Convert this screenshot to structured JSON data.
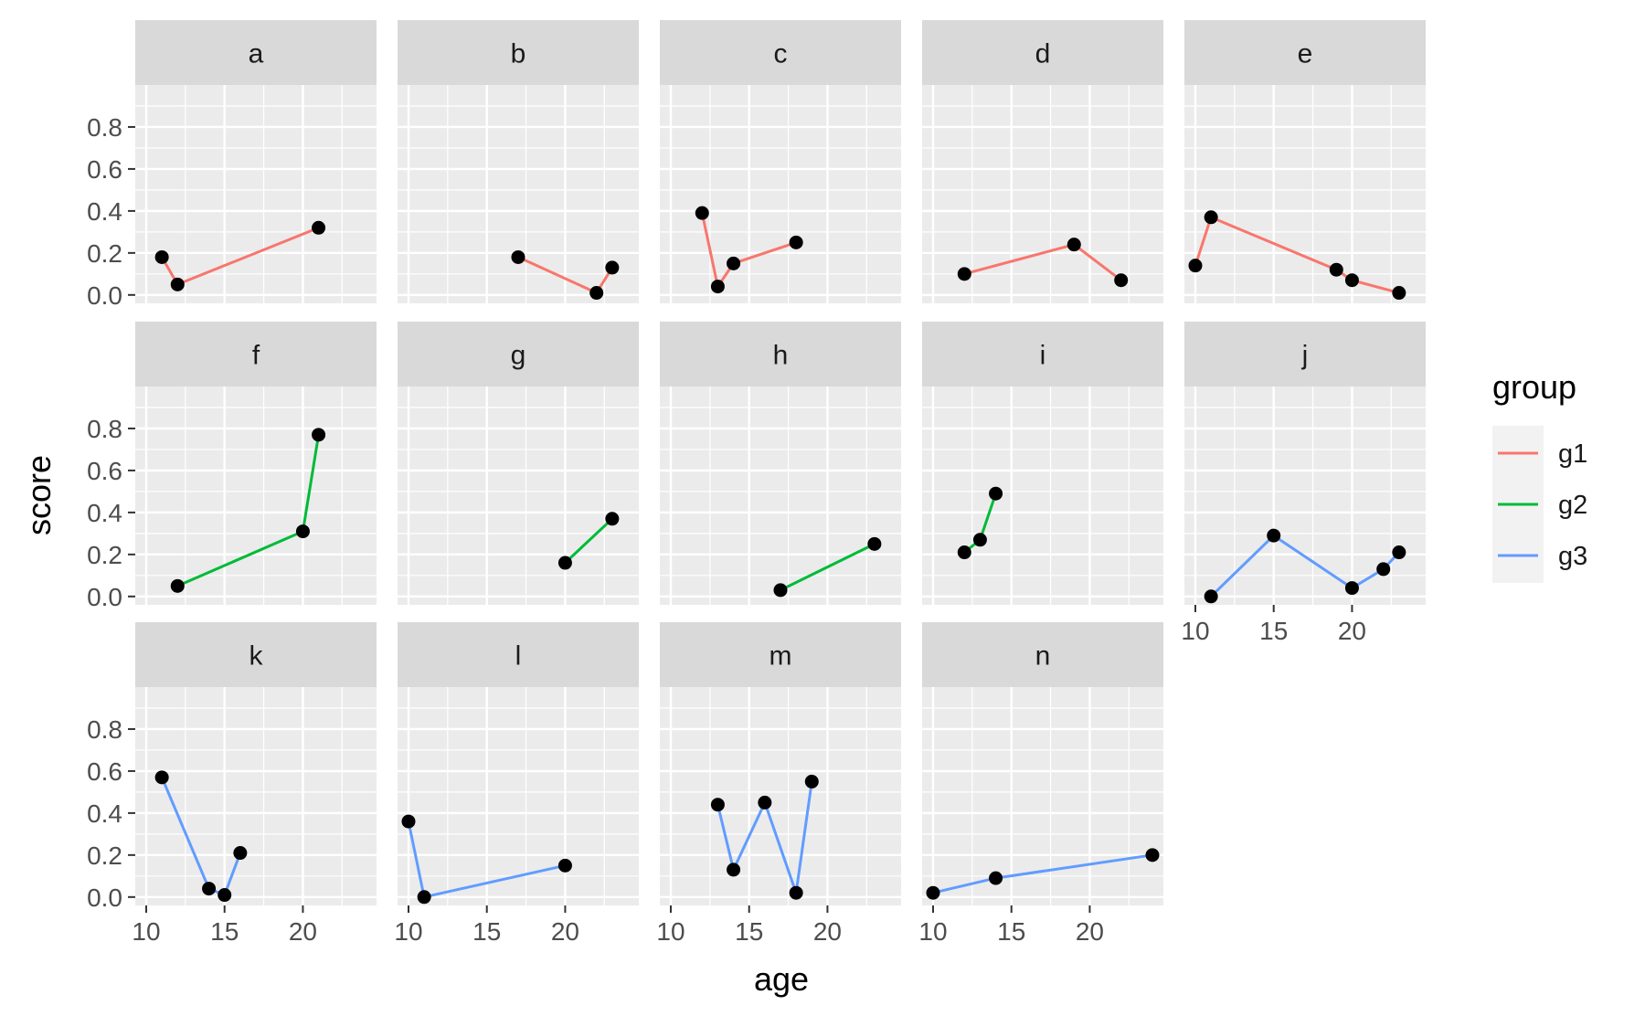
{
  "chart_data": {
    "type": "line",
    "facet": "wrap",
    "xlabel": "age",
    "ylabel": "score",
    "xlim": [
      9.3,
      24.7
    ],
    "ylim": [
      -0.04,
      1.0
    ],
    "x_ticks": [
      10,
      15,
      20
    ],
    "y_ticks": [
      0.0,
      0.2,
      0.4,
      0.6,
      0.8
    ],
    "y_tick_labels": [
      "0.0",
      "0.2",
      "0.4",
      "0.6",
      "0.8"
    ],
    "grid": true,
    "point_color": "#000000",
    "legend": {
      "title": "group",
      "placement": "right",
      "entries": [
        {
          "name": "g1",
          "color": "#F8766D"
        },
        {
          "name": "g2",
          "color": "#00BA38"
        },
        {
          "name": "g3",
          "color": "#619CFF"
        }
      ]
    },
    "panels": [
      {
        "label": "a",
        "group": "g1",
        "x": [
          11,
          12,
          21
        ],
        "y": [
          0.18,
          0.05,
          0.32
        ]
      },
      {
        "label": "b",
        "group": "g1",
        "x": [
          17,
          22,
          23
        ],
        "y": [
          0.18,
          0.01,
          0.13
        ]
      },
      {
        "label": "c",
        "group": "g1",
        "x": [
          12,
          13,
          14,
          18
        ],
        "y": [
          0.39,
          0.04,
          0.15,
          0.25
        ]
      },
      {
        "label": "d",
        "group": "g1",
        "x": [
          12,
          19,
          22
        ],
        "y": [
          0.1,
          0.24,
          0.07
        ]
      },
      {
        "label": "e",
        "group": "g1",
        "x": [
          10,
          11,
          19,
          20,
          23
        ],
        "y": [
          0.14,
          0.37,
          0.12,
          0.07,
          0.01
        ]
      },
      {
        "label": "f",
        "group": "g2",
        "x": [
          12,
          20,
          21
        ],
        "y": [
          0.05,
          0.31,
          0.77
        ]
      },
      {
        "label": "g",
        "group": "g2",
        "x": [
          20,
          23
        ],
        "y": [
          0.16,
          0.37
        ]
      },
      {
        "label": "h",
        "group": "g2",
        "x": [
          17,
          23
        ],
        "y": [
          0.03,
          0.25
        ]
      },
      {
        "label": "i",
        "group": "g2",
        "x": [
          12,
          13,
          14
        ],
        "y": [
          0.21,
          0.27,
          0.49
        ]
      },
      {
        "label": "j",
        "group": "g3",
        "x": [
          11,
          15,
          20,
          22,
          23
        ],
        "y": [
          0.0,
          0.29,
          0.04,
          0.13,
          0.21
        ]
      },
      {
        "label": "k",
        "group": "g3",
        "x": [
          11,
          14,
          15,
          16
        ],
        "y": [
          0.57,
          0.04,
          0.01,
          0.21
        ]
      },
      {
        "label": "l",
        "group": "g3",
        "x": [
          10,
          11,
          20
        ],
        "y": [
          0.36,
          0.0,
          0.15
        ]
      },
      {
        "label": "m",
        "group": "g3",
        "x": [
          13,
          14,
          16,
          18,
          19
        ],
        "y": [
          0.44,
          0.13,
          0.45,
          0.02,
          0.55
        ]
      },
      {
        "label": "n",
        "group": "g3",
        "x": [
          10,
          14,
          24
        ],
        "y": [
          0.02,
          0.09,
          0.2
        ]
      }
    ]
  }
}
